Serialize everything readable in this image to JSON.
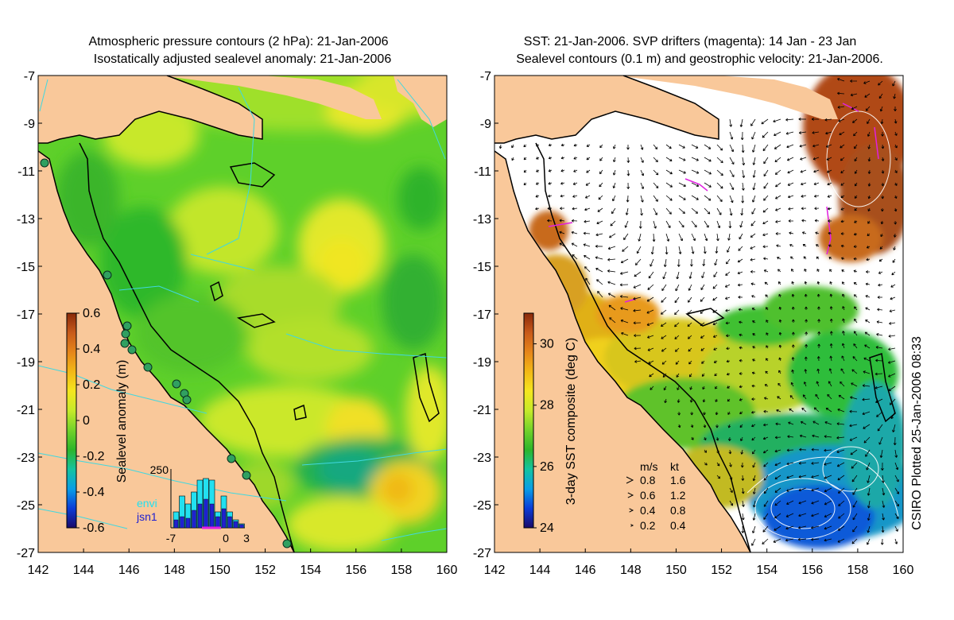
{
  "left_panel": {
    "title_line1": "Atmospheric pressure contours (2 hPa): 21-Jan-2006",
    "title_line2": "Isostatically adjusted sealevel anomaly: 21-Jan-2006",
    "colorbar": {
      "label": "Sealevel anomaly (m)",
      "min": -0.6,
      "max": 0.6,
      "ticks": [
        "0.6",
        "0.4",
        "0.2",
        "0",
        "-0.2",
        "-0.4",
        "-0.6"
      ],
      "colors": [
        "#1a0a6a",
        "#0b3cd8",
        "#0a9ee6",
        "#14c3a0",
        "#2db52a",
        "#72d22a",
        "#c6ea2a",
        "#f5e61e",
        "#f2b816",
        "#e6861a",
        "#c85a1a",
        "#8a2a0a"
      ]
    },
    "histogram": {
      "ymax_label": "250",
      "x_labels": [
        "-7",
        "0",
        "3"
      ],
      "legend": [
        "envi",
        "jsn1"
      ],
      "envi_color": "#22e0f0",
      "jsn1_color": "#2020d0"
    }
  },
  "right_panel": {
    "title_line1": "SST: 21-Jan-2006. SVP drifters (magenta): 14 Jan - 23 Jan",
    "title_line2": "Sealevel contours (0.1 m) and geostrophic velocity: 21-Jan-2006.",
    "colorbar": {
      "label": "3-day SST composite (deg C)",
      "min": 24,
      "max": 31,
      "ticks": [
        "30",
        "28",
        "26",
        "24"
      ],
      "colors": [
        "#1a0a6a",
        "#0b3cd8",
        "#0a9ee6",
        "#14c3a0",
        "#2db52a",
        "#72d22a",
        "#c6ea2a",
        "#f5e61e",
        "#f2b816",
        "#e6861a",
        "#c85a1a",
        "#8a2a0a"
      ]
    },
    "velocity_legend": {
      "header_ms": "m/s",
      "header_kt": "kt",
      "rows": [
        {
          "ms": "0.8",
          "kt": "1.6"
        },
        {
          "ms": "0.6",
          "kt": "1.2"
        },
        {
          "ms": "0.4",
          "kt": "0.8"
        },
        {
          "ms": "0.2",
          "kt": "0.4"
        }
      ]
    },
    "credit": "CSIRO Plotted 25-Jan-2006 08:33"
  },
  "axes": {
    "lat_ticks": [
      "-7",
      "-9",
      "-11",
      "-13",
      "-15",
      "-17",
      "-19",
      "-21",
      "-23",
      "-25",
      "-27"
    ],
    "lon_ticks": [
      "142",
      "144",
      "146",
      "148",
      "150",
      "152",
      "154",
      "156",
      "158",
      "160"
    ],
    "lon_range": [
      142,
      160
    ],
    "lat_range": [
      -27,
      -7
    ]
  },
  "colors": {
    "land": "#f9c89a",
    "coast": "#000000",
    "pressure_contour": "#40d8e0",
    "drifter": "#e020e0"
  }
}
